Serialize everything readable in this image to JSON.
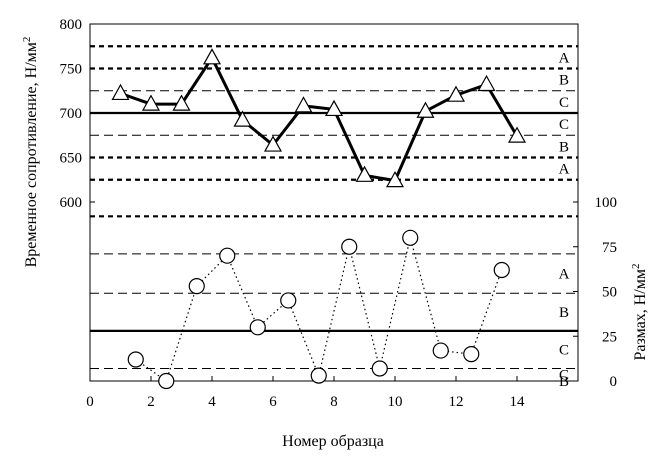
{
  "chart_data": [
    {
      "type": "line",
      "title": "",
      "xlabel": "Номер образца",
      "ylabel": "Временное сопротивление, Н/мм²",
      "xlim": [
        0,
        16
      ],
      "ylim": [
        600,
        800
      ],
      "x_ticks": [
        "0",
        "2",
        "4",
        "6",
        "8",
        "10",
        "12",
        "14"
      ],
      "y_ticks": [
        "600",
        "650",
        "700",
        "750",
        "800"
      ],
      "series": [
        {
          "marker": "triangle",
          "line": "solid-bold",
          "x": [
            1,
            2,
            3,
            4,
            5,
            6,
            7,
            8,
            9,
            10,
            11,
            12,
            13,
            14
          ],
          "y": [
            722,
            710,
            710,
            762,
            692,
            664,
            708,
            704,
            630,
            624,
            702,
            720,
            732,
            674
          ]
        }
      ],
      "reference_lines": [
        {
          "value": 775,
          "style": "dashed-bold",
          "zone_label": "A"
        },
        {
          "value": 750,
          "style": "dashed-bold",
          "zone_label": "B"
        },
        {
          "value": 725,
          "style": "dashed-thin",
          "zone_label": "C"
        },
        {
          "value": 700,
          "style": "solid-center",
          "zone_label": "C"
        },
        {
          "value": 675,
          "style": "dashed-thin",
          "zone_label": "B"
        },
        {
          "value": 650,
          "style": "dashed-bold",
          "zone_label": "A"
        },
        {
          "value": 625,
          "style": "dashed-bold"
        }
      ]
    },
    {
      "type": "line",
      "title": "",
      "xlabel": "Номер образца",
      "ylabel": "Размах, Н/мм²",
      "xlim": [
        0,
        16
      ],
      "ylim": [
        0,
        100
      ],
      "y_ticks": [
        "0",
        "25",
        "50",
        "75",
        "100"
      ],
      "axis_side": "right",
      "series": [
        {
          "marker": "circle",
          "line": "dotted",
          "x": [
            1.5,
            2.5,
            3.5,
            4.5,
            5.5,
            6.5,
            7.5,
            8.5,
            9.5,
            10.5,
            11.5,
            12.5,
            13.5
          ],
          "y": [
            12,
            0,
            53,
            70,
            30,
            45,
            3,
            75,
            7,
            80,
            17,
            15,
            62
          ]
        }
      ],
      "reference_lines": [
        {
          "value": 92,
          "style": "dashed-bold"
        },
        {
          "value": 71,
          "style": "dashed-thin",
          "zone_label": "A"
        },
        {
          "value": 49,
          "style": "dashed-thin",
          "zone_label": "B"
        },
        {
          "value": 28,
          "style": "solid-center",
          "zone_label": "C"
        },
        {
          "value": 7,
          "style": "dashed-thin",
          "zone_label": "C"
        },
        {
          "value": 0,
          "style": "solid-axis",
          "zone_label": "B"
        }
      ]
    }
  ]
}
